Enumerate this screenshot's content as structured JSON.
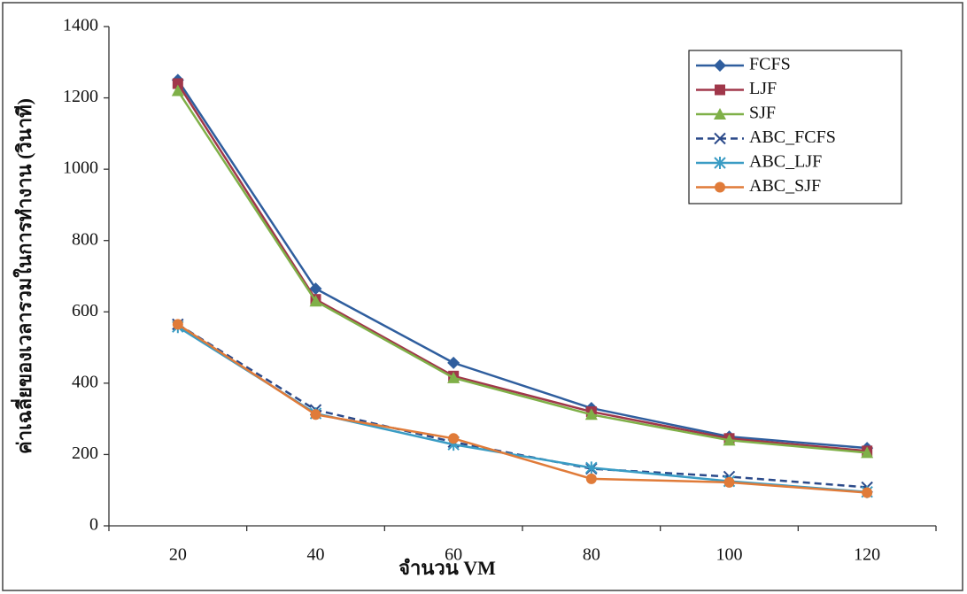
{
  "chart_data": {
    "type": "line",
    "x_label": "จำนวน VM",
    "y_label": "ค่าเฉลี่ยของเวลารวมในการทำงาน (วินาที)",
    "categories": [
      "20",
      "40",
      "60",
      "80",
      "100",
      "120"
    ],
    "ylim": [
      0,
      1400
    ],
    "yticks": [
      0,
      200,
      400,
      600,
      800,
      1000,
      1200,
      1400
    ],
    "grid": false,
    "legend": "upper right",
    "series": [
      {
        "name": "FCFS",
        "color": "#2f5e9e",
        "marker": "diamond",
        "dashed": false,
        "values": [
          1250,
          665,
          457,
          330,
          250,
          218
        ]
      },
      {
        "name": "LJF",
        "color": "#a0374a",
        "marker": "square",
        "dashed": false,
        "values": [
          1240,
          635,
          420,
          320,
          245,
          210
        ]
      },
      {
        "name": "SJF",
        "color": "#7fb048",
        "marker": "triangle",
        "dashed": false,
        "values": [
          1220,
          630,
          415,
          312,
          240,
          205
        ]
      },
      {
        "name": "ABC_FCFS",
        "color": "#2b4a8a",
        "marker": "x",
        "dashed": true,
        "values": [
          565,
          325,
          235,
          160,
          138,
          108
        ]
      },
      {
        "name": "ABC_LJF",
        "color": "#3a9cc4",
        "marker": "star",
        "dashed": false,
        "values": [
          558,
          315,
          228,
          163,
          125,
          95
        ]
      },
      {
        "name": "ABC_SJF",
        "color": "#e07b39",
        "marker": "circle",
        "dashed": false,
        "values": [
          565,
          312,
          245,
          132,
          122,
          93
        ]
      }
    ]
  }
}
